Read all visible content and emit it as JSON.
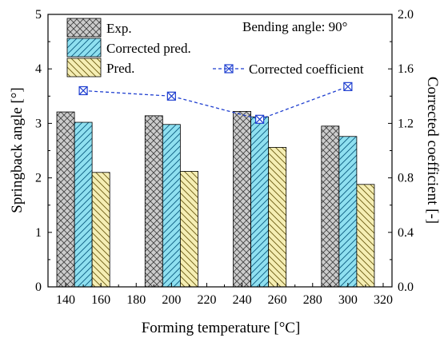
{
  "chart_data": {
    "type": "bar",
    "annotation": "Bending angle: 90°",
    "xlabel": "Forming temperature [°C]",
    "ylabel": "Springback angle [°]",
    "y2label": "Corrected coefficient [-]",
    "xlim": [
      130,
      325
    ],
    "xticks": [
      "140",
      "160",
      "180",
      "200",
      "220",
      "240",
      "260",
      "280",
      "300",
      "320"
    ],
    "ylim": [
      0,
      5
    ],
    "yticks": [
      "0",
      "1",
      "2",
      "3",
      "4",
      "5"
    ],
    "y2lim": [
      0,
      2.0
    ],
    "y2ticks": [
      "0.0",
      "0.4",
      "0.8",
      "1.2",
      "1.6",
      "2.0"
    ],
    "groups": [
      150,
      200,
      250,
      300
    ],
    "series": [
      {
        "name": "Exp.",
        "values": [
          3.21,
          3.14,
          3.22,
          2.95
        ],
        "pattern": "crosshatch",
        "color": "#cccccc"
      },
      {
        "name": "Corrected pred.",
        "values": [
          3.02,
          2.98,
          3.12,
          2.76
        ],
        "pattern": "diagonal",
        "color": "#8fe0f0"
      },
      {
        "name": "Pred.",
        "values": [
          2.1,
          2.12,
          2.56,
          1.88
        ],
        "pattern": "diagonal",
        "color": "#f5eeb4"
      }
    ],
    "line_series": {
      "name": "Corrected coefficient",
      "axis": "right",
      "x": [
        150,
        200,
        250,
        300
      ],
      "values": [
        1.44,
        1.4,
        1.23,
        1.47
      ],
      "color": "#1f3fd0",
      "style": "dashed",
      "marker": "square-x"
    },
    "legend": "top-left"
  }
}
